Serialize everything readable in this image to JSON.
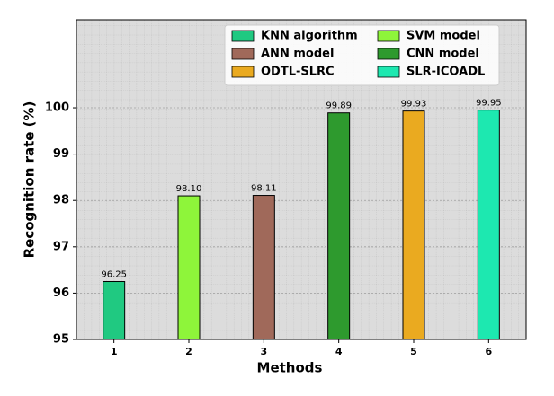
{
  "chart_data": {
    "type": "bar",
    "x_label": "Methods",
    "y_label": "Recognition rate (%)",
    "categories": [
      "1",
      "2",
      "3",
      "4",
      "5",
      "6"
    ],
    "series": [
      {
        "name": "KNN algorithm",
        "color": "#20c981",
        "values": [
          96.25,
          null,
          null,
          null,
          null,
          null
        ]
      },
      {
        "name": "SVM model",
        "color": "#8ef53a",
        "values": [
          null,
          98.1,
          null,
          null,
          null,
          null
        ],
        "value_labels": [
          null,
          "98.10",
          null,
          null,
          null,
          null
        ]
      },
      {
        "name": "ANN model",
        "color": "#a0695a",
        "values": [
          null,
          null,
          98.11,
          null,
          null,
          null
        ]
      },
      {
        "name": "CNN model",
        "color": "#2e9a2e",
        "values": [
          null,
          null,
          null,
          99.89,
          null,
          null
        ]
      },
      {
        "name": "ODTL-SLRC",
        "color": "#eaaa20",
        "values": [
          null,
          null,
          null,
          null,
          99.93,
          null
        ]
      },
      {
        "name": "SLR-ICOADL",
        "color": "#1de8b0",
        "values": [
          null,
          null,
          null,
          null,
          null,
          99.95
        ]
      }
    ],
    "ylim": [
      95,
      101.9
    ],
    "yticks": [
      95,
      96,
      97,
      98,
      99,
      100
    ],
    "grid": true,
    "legend": "upper right"
  }
}
